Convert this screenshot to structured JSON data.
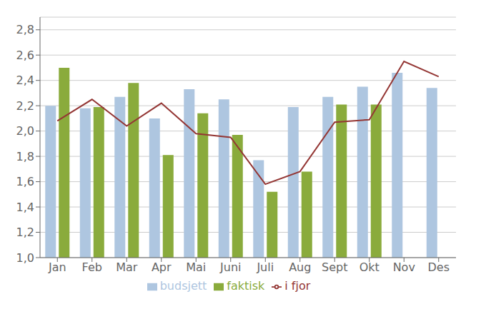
{
  "chart_data": {
    "type": "bar",
    "categories": [
      "Jan",
      "Feb",
      "Mar",
      "Apr",
      "Mai",
      "Juni",
      "Juli",
      "Aug",
      "Sept",
      "Okt",
      "Nov",
      "Des"
    ],
    "series": [
      {
        "name": "budsjett",
        "type": "bar",
        "color": "#aec6e0",
        "values": [
          2.2,
          2.18,
          2.27,
          2.1,
          2.33,
          2.25,
          1.77,
          2.19,
          2.27,
          2.35,
          2.46,
          2.34
        ]
      },
      {
        "name": "faktisk",
        "type": "bar",
        "color": "#8aab3c",
        "values": [
          2.5,
          2.19,
          2.38,
          1.81,
          2.14,
          1.97,
          1.52,
          1.68,
          2.21,
          2.21,
          null,
          null
        ]
      },
      {
        "name": "i fjor",
        "type": "line",
        "color": "#943634",
        "values": [
          2.08,
          2.25,
          2.04,
          2.22,
          1.98,
          1.95,
          1.58,
          1.68,
          2.07,
          2.09,
          2.55,
          2.43
        ]
      }
    ],
    "ylim": [
      1.0,
      2.9
    ],
    "yticks": [
      {
        "value": 1.0,
        "label": "1,0"
      },
      {
        "value": 1.2,
        "label": "1,2"
      },
      {
        "value": 1.4,
        "label": "1,4"
      },
      {
        "value": 1.6,
        "label": "1,6"
      },
      {
        "value": 1.8,
        "label": "1,8"
      },
      {
        "value": 2.0,
        "label": "2,0"
      },
      {
        "value": 2.2,
        "label": "2,2"
      },
      {
        "value": 2.4,
        "label": "2,4"
      },
      {
        "value": 2.6,
        "label": "2,6"
      },
      {
        "value": 2.8,
        "label": "2,8"
      }
    ],
    "grid": true,
    "legend": "bottom"
  }
}
